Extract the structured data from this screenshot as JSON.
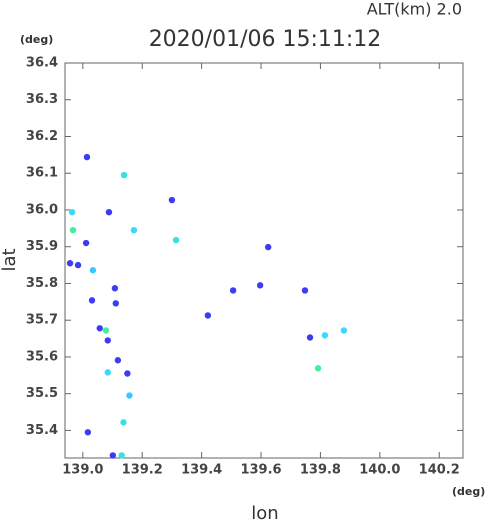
{
  "chart_data": {
    "type": "scatter",
    "title": "2020/01/06 15:11:12",
    "annotation": "ALT(km)  2.0",
    "y_unit": "(deg)",
    "x_unit": "(deg)",
    "x_label": "lon",
    "y_label": "lat",
    "xlim": [
      138.94,
      140.28
    ],
    "ylim": [
      35.325,
      36.4
    ],
    "xticks": [
      {
        "value": 139.0,
        "label": "139.0"
      },
      {
        "value": 139.2,
        "label": "139.2"
      },
      {
        "value": 139.4,
        "label": "139.4"
      },
      {
        "value": 139.6,
        "label": "139.6"
      },
      {
        "value": 139.8,
        "label": "139.8"
      },
      {
        "value": 140.0,
        "label": "140.0"
      },
      {
        "value": 140.2,
        "label": "140.2"
      }
    ],
    "yticks": [
      35.4,
      35.5,
      35.6,
      35.7,
      35.8,
      35.9,
      {
        "value": 36.0,
        "label": "36.0"
      },
      36.1,
      36.2,
      36.3,
      36.4
    ],
    "x": [
      139.014,
      139.139,
      138.964,
      138.967,
      139.011,
      138.957,
      138.984,
      139.034,
      139.031,
      139.108,
      139.111,
      139.057,
      139.078,
      139.084,
      139.118,
      139.084,
      139.15,
      139.157,
      139.137,
      139.131,
      139.101,
      139.172,
      139.314,
      139.3,
      139.088,
      139.421,
      139.624,
      139.765,
      139.792,
      139.879,
      139.815,
      139.748,
      139.506,
      139.597,
      139.017
    ],
    "y": [
      36.144,
      36.095,
      35.994,
      35.945,
      35.91,
      35.855,
      35.85,
      35.836,
      35.754,
      35.787,
      35.746,
      35.678,
      35.672,
      35.645,
      35.591,
      35.558,
      35.555,
      35.495,
      35.422,
      35.332,
      35.332,
      35.945,
      35.918,
      36.027,
      35.994,
      35.713,
      35.899,
      35.653,
      35.569,
      35.672,
      35.659,
      35.781,
      35.781,
      35.795,
      35.395
    ],
    "colors": [
      "#3b3df2",
      "#38e0e0",
      "#3ad8ff",
      "#40f0a0",
      "#3b3df2",
      "#3b3df2",
      "#3b3df2",
      "#38c8ff",
      "#3b3df2",
      "#3b3df2",
      "#3b3df2",
      "#3b3df2",
      "#40f0a0",
      "#3b3df2",
      "#3b3df2",
      "#38d8ff",
      "#3b3df2",
      "#38c8ff",
      "#38e0e0",
      "#38e0e0",
      "#3b3df2",
      "#38d8ff",
      "#38e0e0",
      "#3b3df2",
      "#3b3df2",
      "#3b3df2",
      "#3b3df2",
      "#3b3df2",
      "#40f0a0",
      "#38d8ff",
      "#38d8ff",
      "#3b3df2",
      "#3b3df2",
      "#3b3df2",
      "#3b3df2"
    ]
  }
}
